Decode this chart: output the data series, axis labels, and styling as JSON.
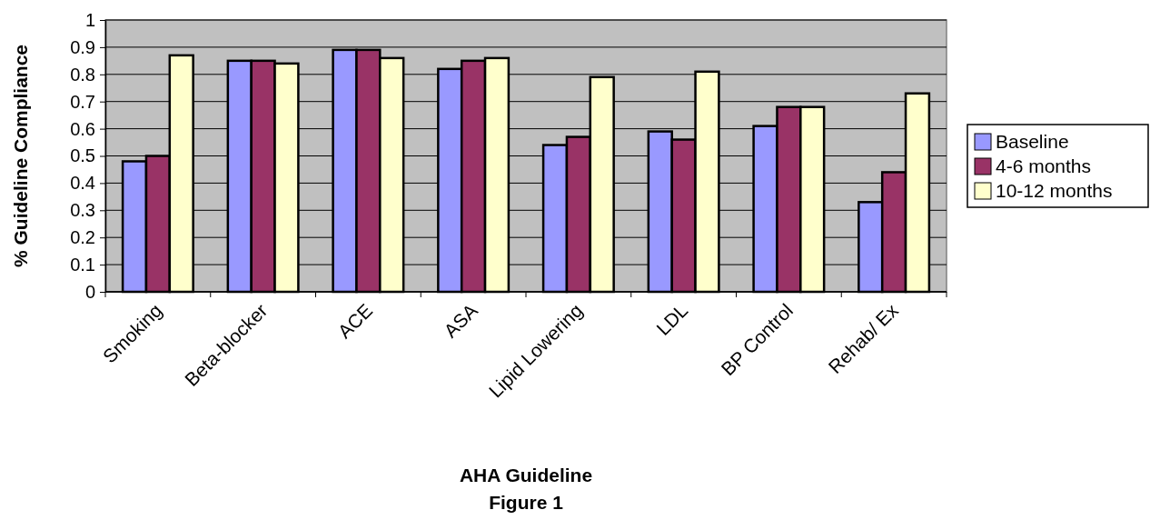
{
  "chart_data": {
    "type": "bar",
    "xlabel": "AHA Guideline",
    "ylabel": "% Guideline Compliance",
    "annotations": [
      "Figure 1"
    ],
    "categories": [
      "Smoking",
      "Beta-blocker",
      "ACE",
      "ASA",
      "Lipid Lowering",
      "LDL",
      "BP Control",
      "Rehab/ Ex"
    ],
    "series": [
      {
        "name": "Baseline",
        "color": "#9999ff",
        "values": [
          0.48,
          0.85,
          0.89,
          0.82,
          0.54,
          0.59,
          0.61,
          0.33
        ]
      },
      {
        "name": "4-6 months",
        "color": "#993366",
        "values": [
          0.5,
          0.85,
          0.89,
          0.85,
          0.57,
          0.56,
          0.68,
          0.44
        ]
      },
      {
        "name": "10-12 months",
        "color": "#ffffcc",
        "values": [
          0.87,
          0.84,
          0.86,
          0.86,
          0.79,
          0.81,
          0.68,
          0.73
        ]
      }
    ],
    "ylim": [
      0,
      1
    ],
    "yticks": [
      0,
      0.1,
      0.2,
      0.3,
      0.4,
      0.5,
      0.6,
      0.7,
      0.8,
      0.9,
      1
    ],
    "grid": "y",
    "legend": "right"
  }
}
